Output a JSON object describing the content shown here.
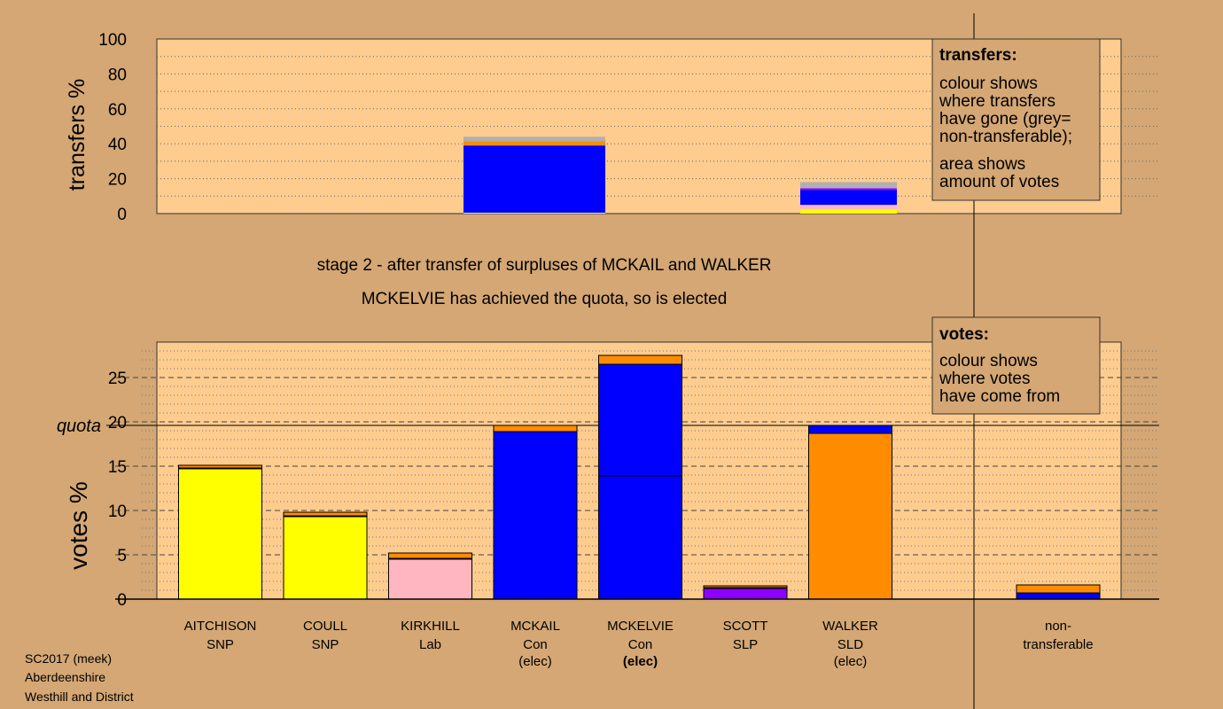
{
  "colors": {
    "background": "#d4a774",
    "plot_bg": "#fecc8e",
    "SNP": "#ffff00",
    "Lab": "#ffb6c1",
    "Con": "#0000ff",
    "SLP": "#8b00ff",
    "SLD": "#ff8c00",
    "grey": "#b0b0b0"
  },
  "stage_line1": "stage 2 - after transfer of surpluses of MCKAIL and WALKER",
  "stage_line2": "MCKELVIE has achieved the quota, so is elected",
  "transfers_legend": {
    "title": "transfers:",
    "line1": "colour shows",
    "line2": "where transfers",
    "line3": "have gone (grey=",
    "line4": "non-transferable);",
    "line5": "area shows",
    "line6": "amount of votes"
  },
  "votes_legend": {
    "title": "votes:",
    "line1": "colour shows",
    "line2": "where votes",
    "line3": "have come from"
  },
  "footer": {
    "line1": "SC2017 (meek)",
    "line2": "Aberdeenshire",
    "line3": "Westhill and District"
  },
  "quota_label": "quota",
  "chart_data": [
    {
      "type": "bar",
      "ylabel": "transfers %",
      "ylim": [
        0,
        100
      ],
      "yticks": [
        "0",
        "20",
        "40",
        "60",
        "80",
        "100"
      ],
      "grid": "dotted",
      "bars": [
        {
          "source": "MCKAIL",
          "stack": [
            {
              "party": "SNP",
              "value": 0.5
            },
            {
              "party": "Con",
              "value": 38.5
            },
            {
              "party": "SLD",
              "value": 2.5
            },
            {
              "party": "grey",
              "value": 2.5
            }
          ]
        },
        {
          "source": "WALKER",
          "stack": [
            {
              "party": "SNP",
              "value": 2.5
            },
            {
              "party": "Lab",
              "value": 2.5
            },
            {
              "party": "Con",
              "value": 8.5
            },
            {
              "party": "SLP",
              "value": 1.0
            },
            {
              "party": "grey",
              "value": 3.5
            }
          ]
        }
      ]
    },
    {
      "type": "bar",
      "ylabel": "votes %",
      "ylim": [
        0,
        29
      ],
      "yticks": [
        "0",
        "5",
        "10",
        "15",
        "20",
        "25"
      ],
      "quota": 19.6,
      "categories": [
        {
          "name": "AITCHISON",
          "party": "SNP",
          "status": ""
        },
        {
          "name": "COULL",
          "party": "SNP",
          "status": ""
        },
        {
          "name": "KIRKHILL",
          "party": "Lab",
          "status": ""
        },
        {
          "name": "MCKAIL",
          "party": "Con",
          "status": "(elec)"
        },
        {
          "name": "MCKELVIE",
          "party": "Con",
          "status": "(elec)"
        },
        {
          "name": "SCOTT",
          "party": "SLP",
          "status": ""
        },
        {
          "name": "WALKER",
          "party": "SLD",
          "status": "(elec)"
        }
      ],
      "nontransferable": {
        "line1": "non-",
        "line2": "transferable"
      },
      "stacks": [
        [
          {
            "party": "SNP",
            "value": 14.7
          },
          {
            "party": "Con",
            "value": 0.1
          },
          {
            "party": "SLD",
            "value": 0.3
          }
        ],
        [
          {
            "party": "SNP",
            "value": 9.3
          },
          {
            "party": "Con",
            "value": 0.1
          },
          {
            "party": "SLD",
            "value": 0.4
          }
        ],
        [
          {
            "party": "Lab",
            "value": 4.5
          },
          {
            "party": "Con",
            "value": 0.1
          },
          {
            "party": "SLD",
            "value": 0.6
          }
        ],
        [
          {
            "party": "Con",
            "value": 18.9
          },
          {
            "party": "SLD",
            "value": 0.7
          }
        ],
        [
          {
            "party": "Con",
            "value": 13.9
          },
          {
            "party": "Con",
            "value": 12.6
          },
          {
            "party": "SLD",
            "value": 1.0
          }
        ],
        [
          {
            "party": "SLP",
            "value": 1.2
          },
          {
            "party": "Con",
            "value": 0.1
          },
          {
            "party": "SLD",
            "value": 0.2
          }
        ],
        [
          {
            "party": "SLD",
            "value": 18.7
          },
          {
            "party": "Con",
            "value": 0.9
          }
        ],
        [
          {
            "party": "Con",
            "value": 0.7
          },
          {
            "party": "SLD",
            "value": 0.9
          }
        ]
      ]
    }
  ]
}
